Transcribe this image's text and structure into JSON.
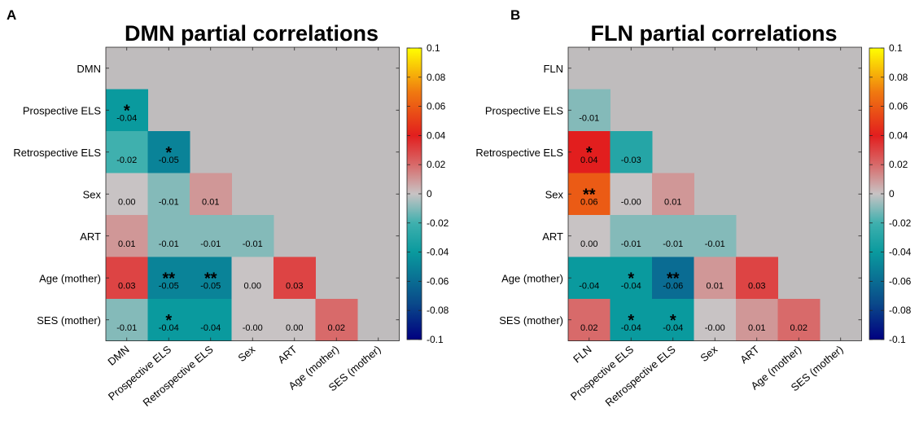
{
  "chart_data": [
    {
      "type": "heatmap",
      "panel_label": "A",
      "title": "DMN partial correlations",
      "variables": [
        "DMN",
        "Prospective ELS",
        "Retrospective ELS",
        "Sex",
        "ART",
        "Age (mother)",
        "SES (mother)"
      ],
      "colorbar": {
        "min": -0.1,
        "max": 0.1,
        "tick_labels": [
          "0.1",
          "0.08",
          "0.06",
          "0.04",
          "0.02",
          "0",
          "-0.02",
          "-0.04",
          "-0.06",
          "-0.08",
          "-0.1"
        ]
      },
      "cells": [
        {
          "row": 1,
          "col": 0,
          "value": -0.04,
          "label": "-0.04",
          "stars": "*"
        },
        {
          "row": 2,
          "col": 0,
          "value": -0.02,
          "label": "-0.02",
          "stars": ""
        },
        {
          "row": 2,
          "col": 1,
          "value": -0.05,
          "label": "-0.05",
          "stars": "*"
        },
        {
          "row": 3,
          "col": 0,
          "value": 0.0,
          "label": "0.00",
          "stars": ""
        },
        {
          "row": 3,
          "col": 1,
          "value": -0.01,
          "label": "-0.01",
          "stars": ""
        },
        {
          "row": 3,
          "col": 2,
          "value": 0.01,
          "label": "0.01",
          "stars": ""
        },
        {
          "row": 4,
          "col": 0,
          "value": 0.01,
          "label": "0.01",
          "stars": ""
        },
        {
          "row": 4,
          "col": 1,
          "value": -0.01,
          "label": "-0.01",
          "stars": ""
        },
        {
          "row": 4,
          "col": 2,
          "value": -0.01,
          "label": "-0.01",
          "stars": ""
        },
        {
          "row": 4,
          "col": 3,
          "value": -0.01,
          "label": "-0.01",
          "stars": ""
        },
        {
          "row": 5,
          "col": 0,
          "value": 0.03,
          "label": "0.03",
          "stars": ""
        },
        {
          "row": 5,
          "col": 1,
          "value": -0.05,
          "label": "-0.05",
          "stars": "**"
        },
        {
          "row": 5,
          "col": 2,
          "value": -0.05,
          "label": "-0.05",
          "stars": "**"
        },
        {
          "row": 5,
          "col": 3,
          "value": 0.0,
          "label": "0.00",
          "stars": ""
        },
        {
          "row": 5,
          "col": 4,
          "value": 0.03,
          "label": "0.03",
          "stars": ""
        },
        {
          "row": 6,
          "col": 0,
          "value": -0.01,
          "label": "-0.01",
          "stars": ""
        },
        {
          "row": 6,
          "col": 1,
          "value": -0.04,
          "label": "-0.04",
          "stars": "*"
        },
        {
          "row": 6,
          "col": 2,
          "value": -0.04,
          "label": "-0.04",
          "stars": ""
        },
        {
          "row": 6,
          "col": 3,
          "value": -0.0,
          "label": "-0.00",
          "stars": ""
        },
        {
          "row": 6,
          "col": 4,
          "value": 0.0,
          "label": "0.00",
          "stars": ""
        },
        {
          "row": 6,
          "col": 5,
          "value": 0.02,
          "label": "0.02",
          "stars": ""
        }
      ]
    },
    {
      "type": "heatmap",
      "panel_label": "B",
      "title": "FLN partial correlations",
      "variables": [
        "FLN",
        "Prospective ELS",
        "Retrospective ELS",
        "Sex",
        "ART",
        "Age (mother)",
        "SES (mother)"
      ],
      "colorbar": {
        "min": -0.1,
        "max": 0.1,
        "tick_labels": [
          "0.1",
          "0.08",
          "0.06",
          "0.04",
          "0.02",
          "0",
          "-0.02",
          "-0.04",
          "-0.06",
          "-0.08",
          "-0.1"
        ]
      },
      "cells": [
        {
          "row": 1,
          "col": 0,
          "value": -0.01,
          "label": "-0.01",
          "stars": ""
        },
        {
          "row": 2,
          "col": 0,
          "value": 0.04,
          "label": "0.04",
          "stars": "*"
        },
        {
          "row": 2,
          "col": 1,
          "value": -0.03,
          "label": "-0.03",
          "stars": ""
        },
        {
          "row": 3,
          "col": 0,
          "value": 0.06,
          "label": "0.06",
          "stars": "**"
        },
        {
          "row": 3,
          "col": 1,
          "value": -0.0,
          "label": "-0.00",
          "stars": ""
        },
        {
          "row": 3,
          "col": 2,
          "value": 0.01,
          "label": "0.01",
          "stars": ""
        },
        {
          "row": 4,
          "col": 0,
          "value": 0.0,
          "label": "0.00",
          "stars": ""
        },
        {
          "row": 4,
          "col": 1,
          "value": -0.01,
          "label": "-0.01",
          "stars": ""
        },
        {
          "row": 4,
          "col": 2,
          "value": -0.01,
          "label": "-0.01",
          "stars": ""
        },
        {
          "row": 4,
          "col": 3,
          "value": -0.01,
          "label": "-0.01",
          "stars": ""
        },
        {
          "row": 5,
          "col": 0,
          "value": -0.04,
          "label": "-0.04",
          "stars": ""
        },
        {
          "row": 5,
          "col": 1,
          "value": -0.04,
          "label": "-0.04",
          "stars": "*"
        },
        {
          "row": 5,
          "col": 2,
          "value": -0.06,
          "label": "-0.06",
          "stars": "**"
        },
        {
          "row": 5,
          "col": 3,
          "value": 0.01,
          "label": "0.01",
          "stars": ""
        },
        {
          "row": 5,
          "col": 4,
          "value": 0.03,
          "label": "0.03",
          "stars": ""
        },
        {
          "row": 6,
          "col": 0,
          "value": 0.02,
          "label": "0.02",
          "stars": ""
        },
        {
          "row": 6,
          "col": 1,
          "value": -0.04,
          "label": "-0.04",
          "stars": "*"
        },
        {
          "row": 6,
          "col": 2,
          "value": -0.04,
          "label": "-0.04",
          "stars": "*"
        },
        {
          "row": 6,
          "col": 3,
          "value": -0.0,
          "label": "-0.00",
          "stars": ""
        },
        {
          "row": 6,
          "col": 4,
          "value": 0.01,
          "label": "0.01",
          "stars": ""
        },
        {
          "row": 6,
          "col": 5,
          "value": 0.02,
          "label": "0.02",
          "stars": ""
        }
      ]
    }
  ],
  "colors": {
    "background_cell": "#bfbcbd",
    "zero": "#c8c3c4",
    "colormap_stops": [
      "#000080",
      "#0a4a8a",
      "#0a8f96",
      "#1aa9a8",
      "#c8c3c4",
      "#d84a4a",
      "#e21e1e",
      "#f07a10",
      "#ffff00"
    ]
  }
}
